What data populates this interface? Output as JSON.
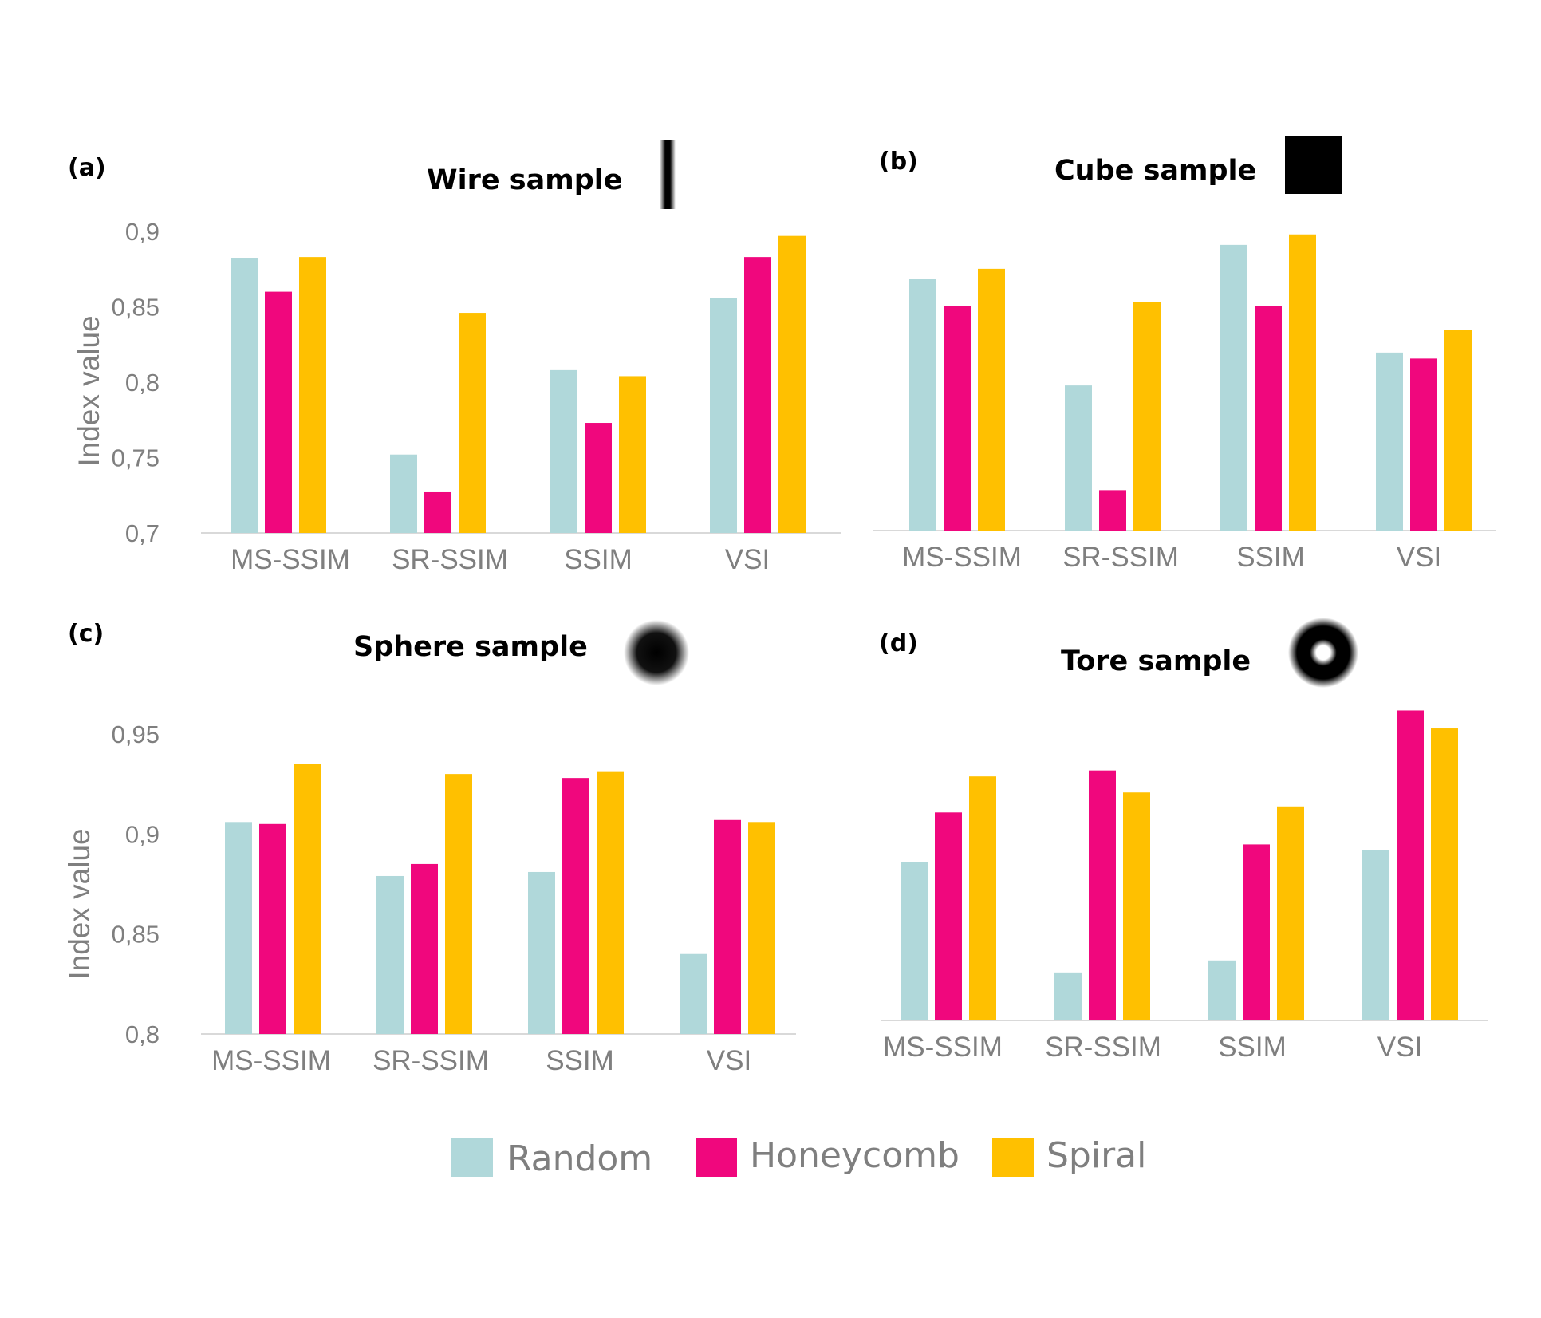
{
  "legend": [
    {
      "name": "Random",
      "color": "#b0d8da"
    },
    {
      "name": "Honeycomb",
      "color": "#f0077d"
    },
    {
      "name": "Spiral",
      "color": "#ffc000"
    }
  ],
  "chart_data": [
    {
      "panel": "(a)",
      "type": "bar",
      "title": "Wire sample",
      "icon": "wire-sample-icon",
      "ylabel": "Index value",
      "ylim": [
        0.7,
        0.9
      ],
      "yticks": [
        0.7,
        0.75,
        0.8,
        0.85,
        0.9
      ],
      "ytick_labels": [
        "0,7",
        "0,75",
        "0,8",
        "0,85",
        "0,9"
      ],
      "categories": [
        "MS-SSIM",
        "SR-SSIM",
        "SSIM",
        "VSI"
      ],
      "series": [
        {
          "name": "Random",
          "values": [
            0.882,
            0.752,
            0.808,
            0.856
          ]
        },
        {
          "name": "Honeycomb",
          "values": [
            0.86,
            0.727,
            0.773,
            0.883
          ]
        },
        {
          "name": "Spiral",
          "values": [
            0.883,
            0.846,
            0.804,
            0.897
          ]
        }
      ]
    },
    {
      "panel": "(b)",
      "type": "bar",
      "title": "Cube sample",
      "icon": "cube-sample-icon",
      "ylabel": "",
      "ylim": [
        0.7,
        0.9
      ],
      "yticks": [],
      "ytick_labels": [],
      "categories": [
        "MS-SSIM",
        "SR-SSIM",
        "SSIM",
        "VSI"
      ],
      "series": [
        {
          "name": "Random",
          "values": [
            0.868,
            0.797,
            0.891,
            0.819
          ]
        },
        {
          "name": "Honeycomb",
          "values": [
            0.85,
            0.727,
            0.85,
            0.815
          ]
        },
        {
          "name": "Spiral",
          "values": [
            0.875,
            0.853,
            0.898,
            0.834
          ]
        }
      ]
    },
    {
      "panel": "(c)",
      "type": "bar",
      "title": "Sphere sample",
      "icon": "sphere-sample-icon",
      "ylabel": "Index value",
      "ylim": [
        0.8,
        0.95
      ],
      "yticks": [
        0.8,
        0.85,
        0.9,
        0.95
      ],
      "ytick_labels": [
        "0,8",
        "0,85",
        "0,9",
        "0,95"
      ],
      "categories": [
        "MS-SSIM",
        "SR-SSIM",
        "SSIM",
        "VSI"
      ],
      "series": [
        {
          "name": "Random",
          "values": [
            0.906,
            0.879,
            0.881,
            0.84
          ]
        },
        {
          "name": "Honeycomb",
          "values": [
            0.905,
            0.885,
            0.928,
            0.907
          ]
        },
        {
          "name": "Spiral",
          "values": [
            0.935,
            0.93,
            0.931,
            0.906
          ]
        }
      ]
    },
    {
      "panel": "(d)",
      "type": "bar",
      "title": "Tore sample",
      "icon": "tore-sample-icon",
      "ylabel": "",
      "ylim": [
        0.8,
        0.95
      ],
      "yticks": [],
      "ytick_labels": [],
      "categories": [
        "MS-SSIM",
        "SR-SSIM",
        "SSIM",
        "VSI"
      ],
      "series": [
        {
          "name": "Random",
          "values": [
            0.879,
            0.824,
            0.83,
            0.885
          ]
        },
        {
          "name": "Honeycomb",
          "values": [
            0.904,
            0.925,
            0.888,
            0.955
          ]
        },
        {
          "name": "Spiral",
          "values": [
            0.922,
            0.914,
            0.907,
            0.946
          ]
        }
      ]
    }
  ]
}
